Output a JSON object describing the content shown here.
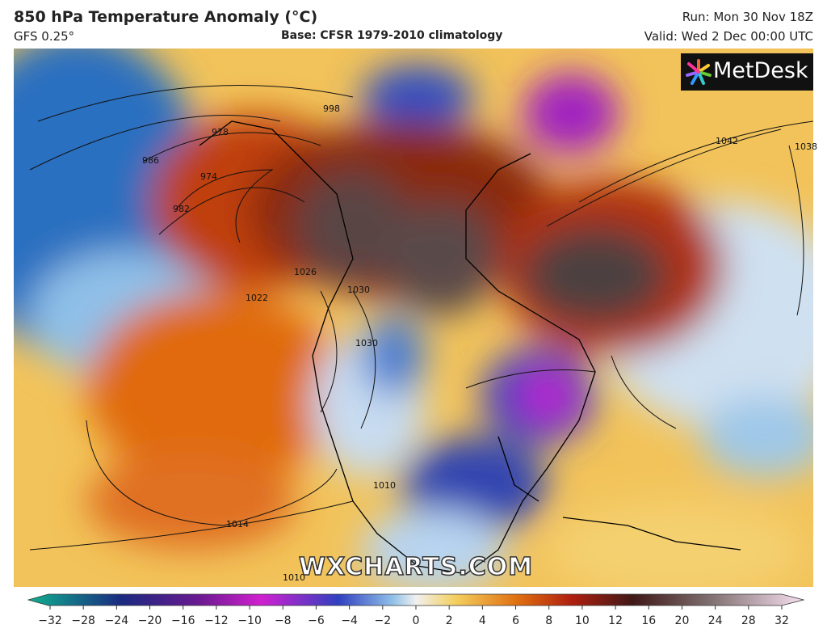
{
  "header": {
    "title": "850 hPa Temperature Anomaly (°C)",
    "model": "GFS 0.25°",
    "base": "Base: CFSR 1979-2010 climatology",
    "run": "Run: Mon 30 Nov 18Z",
    "valid": "Valid: Wed 2 Dec 00:00 UTC"
  },
  "logo": "MetDesk",
  "watermark": "WXCHARTS.COM",
  "isobar_labels": [
    "978",
    "974",
    "982",
    "986",
    "998",
    "1042",
    "1038",
    "1030",
    "1022",
    "1026",
    "1030",
    "1014",
    "1010",
    "1010"
  ],
  "colorbar": {
    "ticks": [
      "−32",
      "−28",
      "−24",
      "−20",
      "−16",
      "−12",
      "−10",
      "−8",
      "−6",
      "−4",
      "−2",
      "0",
      "2",
      "4",
      "6",
      "8",
      "10",
      "12",
      "16",
      "20",
      "24",
      "28",
      "32"
    ]
  }
}
